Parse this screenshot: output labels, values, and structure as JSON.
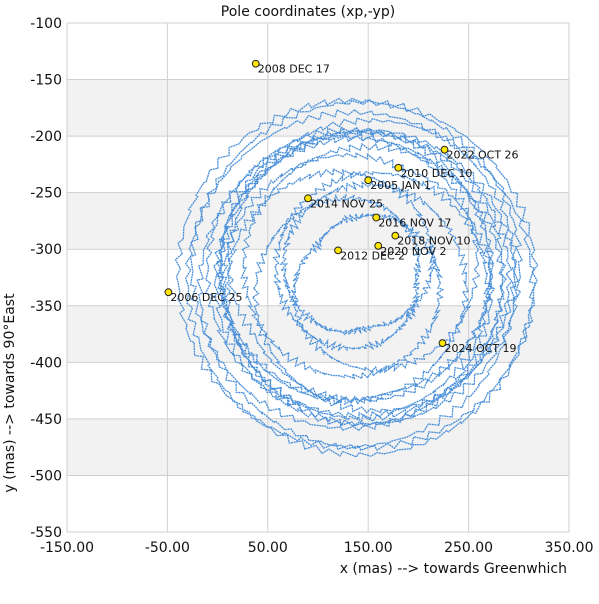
{
  "chart_data": {
    "type": "scatter",
    "title": "Pole coordinates (xp,-yp)",
    "xlabel": "x (mas) --> towards Greenwhich",
    "ylabel": "y (mas) --> towards 90°East",
    "xlim": [
      -150,
      350
    ],
    "ylim": [
      -550,
      -100
    ],
    "x_ticks": [
      -150,
      -50,
      50,
      150,
      250,
      350
    ],
    "x_tick_labels": [
      "-150.00",
      "-50.00",
      "50.00",
      "150.00",
      "250.00",
      "350.00"
    ],
    "y_ticks": [
      -550,
      -500,
      -450,
      -400,
      -350,
      -300,
      -250,
      -200,
      -150,
      -100
    ],
    "y_tick_labels": [
      "-550",
      "-500",
      "-450",
      "-400",
      "-350",
      "-300",
      "-250",
      "-200",
      "-150",
      "-100"
    ],
    "grid": true,
    "band_color": "#f2f2f2",
    "line_color": "#4a90d9",
    "marker_color": "#ffe600",
    "annotations": [
      {
        "label": "2005 JAN 1",
        "x": 150,
        "y": -239
      },
      {
        "label": "2006 DEC 25",
        "x": -49,
        "y": -338
      },
      {
        "label": "2008 DEC 17",
        "x": 38,
        "y": -136
      },
      {
        "label": "2010 DEC 10",
        "x": 180,
        "y": -228
      },
      {
        "label": "2012 DEC 2",
        "x": 120,
        "y": -301
      },
      {
        "label": "2014 NOV 25",
        "x": 90,
        "y": -255
      },
      {
        "label": "2016 NOV 17",
        "x": 158,
        "y": -272
      },
      {
        "label": "2018 NOV 10",
        "x": 177,
        "y": -288
      },
      {
        "label": "2020 NOV 2",
        "x": 160,
        "y": -297
      },
      {
        "label": "2022 OCT 26",
        "x": 226,
        "y": -212
      },
      {
        "label": "2024 OCT 19",
        "x": 224,
        "y": -383
      }
    ]
  }
}
